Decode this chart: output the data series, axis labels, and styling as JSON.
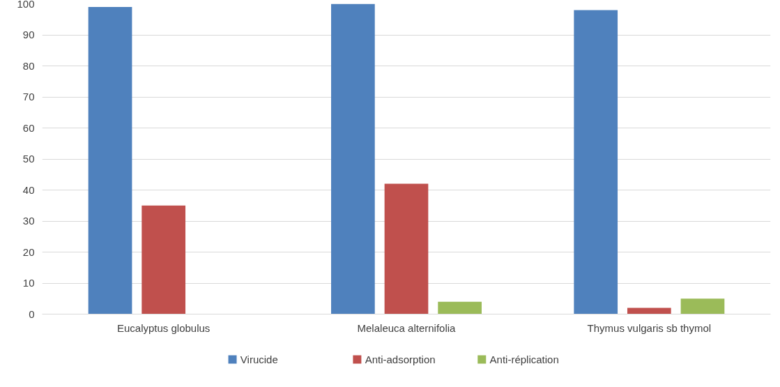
{
  "chart_data": {
    "type": "bar",
    "categories": [
      "Eucalyptus globulus",
      "Melaleuca alternifolia",
      "Thymus vulgaris sb thymol"
    ],
    "series": [
      {
        "name": "Virucide",
        "color": "#4f81bd",
        "values": [
          99,
          100,
          98
        ]
      },
      {
        "name": "Anti-adsorption",
        "color": "#c0504d",
        "values": [
          35,
          42,
          2
        ]
      },
      {
        "name": "Anti-réplication",
        "color": "#9bbb59",
        "values": [
          null,
          4,
          5
        ]
      }
    ],
    "ylim": [
      0,
      100
    ],
    "yticks": [
      0,
      10,
      20,
      30,
      40,
      50,
      60,
      70,
      80,
      90,
      100
    ],
    "grid": "y",
    "legend": "bottom"
  }
}
